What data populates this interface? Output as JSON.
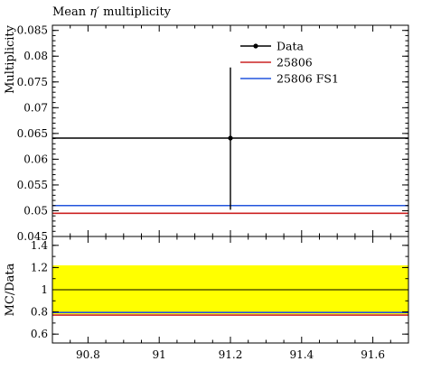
{
  "chart_data": {
    "type": "line",
    "title_prefix": "Mean ",
    "title_symbol": "η′",
    "title_suffix": " multiplicity",
    "xlim": [
      90.7,
      91.7
    ],
    "x_ticks": [
      "90.8",
      "91",
      "91.2",
      "91.4",
      "91.6"
    ],
    "main": {
      "ylabel": "Multiplicity",
      "ylim": [
        0.045,
        0.086
      ],
      "y_ticks": [
        "0.045",
        "0.05",
        "0.055",
        "0.06",
        "0.065",
        "0.07",
        "0.075",
        "0.08",
        "0.085"
      ],
      "series": [
        {
          "name": "Data",
          "color": "#000000",
          "kind": "point",
          "x": 91.2,
          "y": 0.0641,
          "y_err_low": 0.0502,
          "y_err_high": 0.0778,
          "x_range": [
            90.7,
            91.7
          ]
        },
        {
          "name": "25806",
          "color": "#cc2222",
          "kind": "line",
          "y": 0.0495
        },
        {
          "name": "25806 FS1",
          "color": "#2255dd",
          "kind": "line",
          "y": 0.051
        }
      ],
      "legend_position": "top-right"
    },
    "ratio": {
      "ylabel": "MC/Data",
      "ylim": [
        0.52,
        1.48
      ],
      "y_ticks": [
        "0.6",
        "0.8",
        "1",
        "1.2",
        "1.4"
      ],
      "band": {
        "low": 0.78,
        "high": 1.22,
        "color": "#ffff00"
      },
      "reference": 1.0,
      "series": [
        {
          "name": "25806",
          "color": "#cc2222",
          "y": 0.772
        },
        {
          "name": "25806 FS1",
          "color": "#2255dd",
          "y": 0.795
        }
      ]
    }
  }
}
